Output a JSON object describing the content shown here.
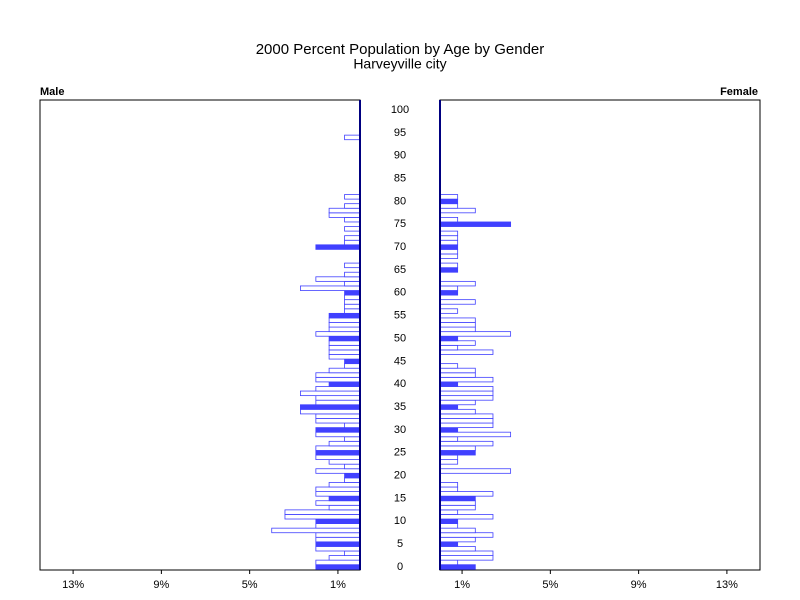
{
  "chart_data": {
    "type": "pyramid",
    "title": "2000 Percent Population by Age by Gender",
    "subtitle": "Harveyville city",
    "y": [
      0,
      1,
      2,
      3,
      4,
      5,
      6,
      7,
      8,
      9,
      10,
      11,
      12,
      13,
      14,
      15,
      16,
      17,
      18,
      19,
      20,
      21,
      22,
      23,
      24,
      25,
      26,
      27,
      28,
      29,
      30,
      31,
      32,
      33,
      34,
      35,
      36,
      37,
      38,
      39,
      40,
      41,
      42,
      43,
      44,
      45,
      46,
      47,
      48,
      49,
      50,
      51,
      52,
      53,
      54,
      55,
      56,
      57,
      58,
      59,
      60,
      61,
      62,
      63,
      64,
      65,
      66,
      67,
      68,
      69,
      70,
      71,
      72,
      73,
      74,
      75,
      76,
      77,
      78,
      79,
      80,
      81,
      82,
      83,
      84,
      85,
      86,
      87,
      88,
      89,
      90,
      91,
      92,
      93,
      94,
      95,
      96,
      97,
      98,
      99,
      100
    ],
    "ylim": [
      0,
      100
    ],
    "yticks": [
      0,
      5,
      10,
      15,
      20,
      25,
      30,
      35,
      40,
      45,
      50,
      55,
      60,
      65,
      70,
      75,
      80,
      85,
      90,
      95,
      100
    ],
    "xlim": [
      0,
      14.5
    ],
    "xticks": [
      {
        "value": 1,
        "label": "1%"
      },
      {
        "value": 5,
        "label": "5%"
      },
      {
        "value": 9,
        "label": "9%"
      },
      {
        "value": 13,
        "label": "13%"
      }
    ],
    "series": [
      {
        "name": "Male",
        "color": "#4040ff",
        "values": [
          2.0,
          2.0,
          1.4,
          0.7,
          2.0,
          2.0,
          2.0,
          2.0,
          4.0,
          2.0,
          2.0,
          3.4,
          3.4,
          1.4,
          2.0,
          1.4,
          2.0,
          2.0,
          1.4,
          0.7,
          0.7,
          2.0,
          0.7,
          1.4,
          2.0,
          2.0,
          2.0,
          1.4,
          0.7,
          2.0,
          2.0,
          0.7,
          2.0,
          2.0,
          2.7,
          2.7,
          2.0,
          2.0,
          2.7,
          2.0,
          1.4,
          2.0,
          2.0,
          1.4,
          0.7,
          0.7,
          1.4,
          1.4,
          1.4,
          1.4,
          1.4,
          2.0,
          1.4,
          1.4,
          1.4,
          1.4,
          0.7,
          0.7,
          0.7,
          0.7,
          0.7,
          2.7,
          0.7,
          2.0,
          0.7,
          0,
          0.7,
          0,
          0,
          0,
          2.0,
          0.7,
          0.7,
          0,
          0.7,
          0,
          0.7,
          1.4,
          1.4,
          0.7,
          0,
          0.7,
          0,
          0,
          0,
          0,
          0,
          0,
          0,
          0,
          0,
          0,
          0,
          0,
          0.7,
          0,
          0,
          0,
          0,
          0,
          0
        ]
      },
      {
        "name": "Female",
        "color": "#4040ff",
        "values": [
          1.6,
          0.8,
          2.4,
          2.4,
          1.6,
          0.8,
          1.6,
          2.4,
          1.6,
          0.8,
          0.8,
          2.4,
          0.8,
          1.6,
          1.6,
          1.6,
          2.4,
          0.8,
          0.8,
          0,
          0,
          3.2,
          0,
          0.8,
          0.8,
          1.6,
          1.6,
          2.4,
          0.8,
          3.2,
          0.8,
          2.4,
          2.4,
          2.4,
          1.6,
          0.8,
          1.6,
          2.4,
          2.4,
          2.4,
          0.8,
          2.4,
          1.6,
          1.6,
          0.8,
          0,
          0,
          2.4,
          0.8,
          1.6,
          0.8,
          3.2,
          1.6,
          1.6,
          1.6,
          0,
          0.8,
          0,
          1.6,
          0,
          0.8,
          0.8,
          1.6,
          0,
          0,
          0.8,
          0.8,
          0,
          0.8,
          0.8,
          0.8,
          0.8,
          0.8,
          0.8,
          0,
          3.2,
          0.8,
          0,
          1.6,
          0.8,
          0.8,
          0.8,
          0,
          0,
          0,
          0,
          0,
          0,
          0,
          0,
          0,
          0,
          0,
          0,
          0,
          0,
          0,
          0,
          0,
          0,
          0
        ]
      }
    ]
  }
}
